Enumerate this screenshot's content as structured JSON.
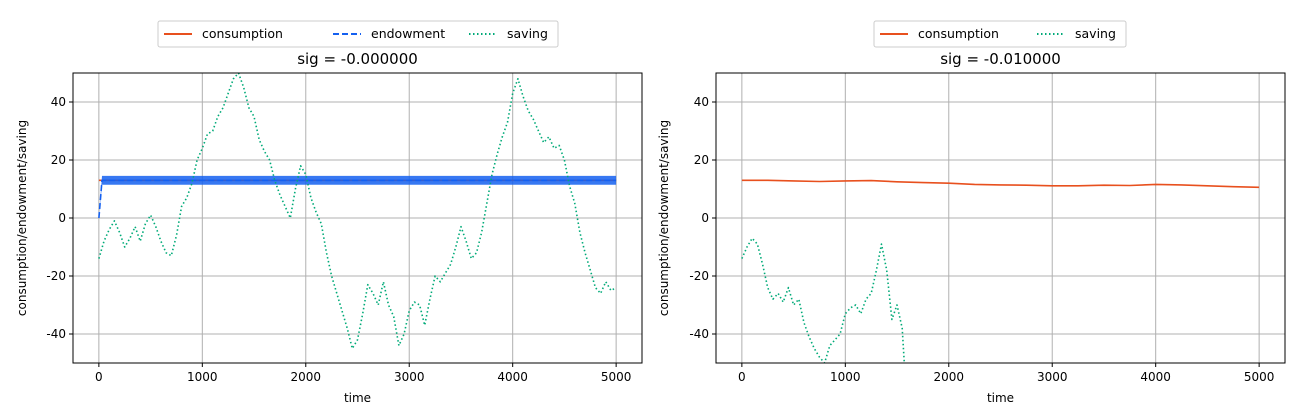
{
  "chart_data": [
    {
      "type": "line",
      "title": "sig = -0.000000",
      "xlabel": "time",
      "ylabel": "consumption/endowment/saving",
      "xlim": [
        -250,
        5250
      ],
      "ylim": [
        -50,
        50
      ],
      "xticks": [
        0,
        1000,
        2000,
        3000,
        4000,
        5000
      ],
      "yticks": [
        -40,
        -20,
        0,
        20,
        40
      ],
      "grid": true,
      "legend": {
        "placement": "top-center",
        "entries": [
          "consumption",
          "endowment",
          "saving"
        ]
      },
      "series": [
        {
          "name": "consumption",
          "color": "#e8501e",
          "style": "solid",
          "x": [
            0,
            5000
          ],
          "y": [
            13,
            13
          ]
        },
        {
          "name": "endowment",
          "color": "#1460f0",
          "style": "dashed",
          "band": 1.5,
          "x": [
            0,
            30,
            50,
            5000
          ],
          "y": [
            0,
            13,
            13,
            13
          ]
        },
        {
          "name": "saving",
          "color": "#00aa78",
          "style": "dotted",
          "x": [
            0,
            50,
            100,
            150,
            200,
            250,
            300,
            350,
            400,
            450,
            500,
            550,
            600,
            650,
            700,
            750,
            800,
            850,
            900,
            950,
            1000,
            1050,
            1100,
            1150,
            1200,
            1250,
            1300,
            1350,
            1400,
            1450,
            1500,
            1550,
            1600,
            1650,
            1700,
            1750,
            1800,
            1850,
            1900,
            1950,
            2000,
            2050,
            2100,
            2150,
            2200,
            2250,
            2300,
            2350,
            2400,
            2450,
            2500,
            2550,
            2600,
            2650,
            2700,
            2750,
            2800,
            2850,
            2900,
            2950,
            3000,
            3050,
            3100,
            3150,
            3200,
            3250,
            3300,
            3350,
            3400,
            3450,
            3500,
            3550,
            3600,
            3650,
            3700,
            3750,
            3800,
            3850,
            3900,
            3950,
            4000,
            4050,
            4100,
            4150,
            4200,
            4250,
            4300,
            4350,
            4400,
            4450,
            4500,
            4550,
            4600,
            4650,
            4700,
            4750,
            4800,
            4850,
            4900,
            4950,
            5000
          ],
          "y": [
            -14,
            -8,
            -4,
            -1,
            -5,
            -10,
            -7,
            -3,
            -8,
            -2,
            1,
            -3,
            -8,
            -12,
            -13,
            -6,
            4,
            7,
            12,
            20,
            24,
            29,
            30,
            35,
            38,
            43,
            48,
            50,
            45,
            38,
            35,
            27,
            23,
            20,
            13,
            8,
            4,
            0,
            10,
            18,
            15,
            7,
            2,
            -2,
            -12,
            -20,
            -26,
            -32,
            -38,
            -45,
            -42,
            -33,
            -23,
            -26,
            -30,
            -22,
            -30,
            -34,
            -44,
            -40,
            -32,
            -29,
            -30,
            -37,
            -28,
            -20,
            -22,
            -19,
            -16,
            -10,
            -3,
            -8,
            -14,
            -12,
            -5,
            5,
            15,
            22,
            28,
            33,
            43,
            48,
            42,
            37,
            34,
            30,
            26,
            28,
            24,
            25,
            20,
            11,
            5,
            -5,
            -12,
            -18,
            -24,
            -26,
            -22,
            -25,
            -24
          ]
        }
      ]
    },
    {
      "type": "line",
      "title": "sig = -0.010000",
      "xlabel": "time",
      "ylabel": "consumption/endowment/saving",
      "xlim": [
        -250,
        5250
      ],
      "ylim": [
        -50,
        50
      ],
      "xticks": [
        0,
        1000,
        2000,
        3000,
        4000,
        5000
      ],
      "yticks": [
        -40,
        -20,
        0,
        20,
        40
      ],
      "grid": true,
      "legend": {
        "placement": "top-center",
        "entries": [
          "consumption",
          "saving"
        ]
      },
      "series": [
        {
          "name": "consumption",
          "color": "#e8501e",
          "style": "solid",
          "x": [
            0,
            250,
            500,
            750,
            1000,
            1250,
            1500,
            1750,
            2000,
            2250,
            2500,
            2750,
            3000,
            3250,
            3500,
            3750,
            4000,
            4250,
            4500,
            4750,
            5000
          ],
          "y": [
            13,
            13,
            12.8,
            12.6,
            12.8,
            12.9,
            12.5,
            12.2,
            12,
            11.6,
            11.4,
            11.3,
            11.1,
            11.1,
            11.3,
            11.2,
            11.6,
            11.4,
            11.1,
            10.8,
            10.6
          ]
        },
        {
          "name": "saving",
          "color": "#00aa78",
          "style": "dotted",
          "x": [
            0,
            50,
            100,
            150,
            200,
            250,
            300,
            350,
            400,
            450,
            500,
            550,
            600,
            650,
            700,
            750,
            800,
            850,
            900,
            950,
            1000,
            1050,
            1100,
            1150,
            1200,
            1250,
            1300,
            1350,
            1400,
            1450,
            1500,
            1550,
            1570
          ],
          "y": [
            -14,
            -10,
            -7,
            -9,
            -16,
            -24,
            -28,
            -26,
            -29,
            -24,
            -30,
            -28,
            -36,
            -41,
            -45,
            -48,
            -50,
            -44,
            -42,
            -40,
            -33,
            -31,
            -30,
            -33,
            -28,
            -26,
            -18,
            -9,
            -18,
            -35,
            -30,
            -38,
            -50
          ]
        }
      ]
    }
  ]
}
